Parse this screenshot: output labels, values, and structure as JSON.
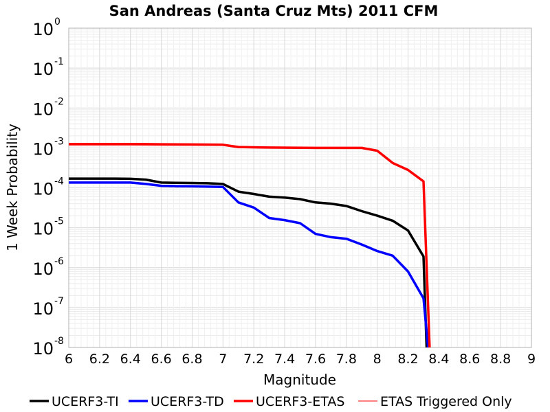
{
  "chart_data": {
    "type": "line",
    "title": "San Andreas (Santa Cruz Mts) 2011 CFM",
    "xlabel": "Magnitude",
    "ylabel": "1 Week Probability",
    "xlim": [
      6,
      9
    ],
    "ylim": [
      1e-08,
      1
    ],
    "yscale": "log",
    "x_ticks": [
      "6",
      "6.2",
      "6.4",
      "6.6",
      "6.8",
      "7",
      "7.2",
      "7.4",
      "7.6",
      "7.8",
      "8",
      "8.2",
      "8.4",
      "8.6",
      "8.8",
      "9"
    ],
    "y_ticks": [
      {
        "base": "10",
        "exp": "0",
        "value": 1
      },
      {
        "base": "10",
        "exp": "-1",
        "value": 0.1
      },
      {
        "base": "10",
        "exp": "-2",
        "value": 0.01
      },
      {
        "base": "10",
        "exp": "-3",
        "value": 0.001
      },
      {
        "base": "10",
        "exp": "-4",
        "value": 0.0001
      },
      {
        "base": "10",
        "exp": "-5",
        "value": 1e-05
      },
      {
        "base": "10",
        "exp": "-6",
        "value": 1e-06
      },
      {
        "base": "10",
        "exp": "-7",
        "value": 1e-07
      },
      {
        "base": "10",
        "exp": "-8",
        "value": 1e-08
      }
    ],
    "grid": true,
    "legend_position": "bottom",
    "series": [
      {
        "name": "UCERF3-TI",
        "color": "#000000",
        "points": [
          [
            6.0,
            0.00017
          ],
          [
            6.1,
            0.00017
          ],
          [
            6.2,
            0.00017
          ],
          [
            6.3,
            0.00017
          ],
          [
            6.4,
            0.000168
          ],
          [
            6.5,
            0.00016
          ],
          [
            6.6,
            0.000135
          ],
          [
            6.7,
            0.000133
          ],
          [
            6.8,
            0.000132
          ],
          [
            6.9,
            0.00013
          ],
          [
            7.0,
            0.000125
          ],
          [
            7.1,
            8e-05
          ],
          [
            7.2,
            7e-05
          ],
          [
            7.3,
            6e-05
          ],
          [
            7.4,
            5.7e-05
          ],
          [
            7.5,
            5.2e-05
          ],
          [
            7.6,
            4.3e-05
          ],
          [
            7.7,
            4e-05
          ],
          [
            7.8,
            3.5e-05
          ],
          [
            7.9,
            2.6e-05
          ],
          [
            8.0,
            2e-05
          ],
          [
            8.1,
            1.5e-05
          ],
          [
            8.2,
            8.5e-06
          ],
          [
            8.3,
            1.9e-06
          ],
          [
            8.32,
            1e-08
          ]
        ]
      },
      {
        "name": "UCERF3-TD",
        "color": "#0000ff",
        "points": [
          [
            6.0,
            0.000135
          ],
          [
            6.1,
            0.000135
          ],
          [
            6.2,
            0.000135
          ],
          [
            6.3,
            0.000135
          ],
          [
            6.4,
            0.000135
          ],
          [
            6.5,
            0.000125
          ],
          [
            6.6,
            0.000112
          ],
          [
            6.7,
            0.00011
          ],
          [
            6.8,
            0.000109
          ],
          [
            6.9,
            0.000107
          ],
          [
            7.0,
            0.000105
          ],
          [
            7.1,
            4.3e-05
          ],
          [
            7.2,
            3.2e-05
          ],
          [
            7.3,
            1.75e-05
          ],
          [
            7.4,
            1.55e-05
          ],
          [
            7.5,
            1.3e-05
          ],
          [
            7.6,
            7e-06
          ],
          [
            7.7,
            5.8e-06
          ],
          [
            7.8,
            5.3e-06
          ],
          [
            7.9,
            3.8e-06
          ],
          [
            8.0,
            2.6e-06
          ],
          [
            8.1,
            2e-06
          ],
          [
            8.2,
            8e-07
          ],
          [
            8.3,
            1.7e-07
          ],
          [
            8.33,
            1e-08
          ]
        ]
      },
      {
        "name": "UCERF3-ETAS",
        "color": "#ff0000",
        "points": [
          [
            6.0,
            0.00125
          ],
          [
            6.4,
            0.00125
          ],
          [
            6.5,
            0.00124
          ],
          [
            6.6,
            0.00123
          ],
          [
            6.8,
            0.00122
          ],
          [
            7.0,
            0.0012
          ],
          [
            7.1,
            0.00105
          ],
          [
            7.3,
            0.00102
          ],
          [
            7.6,
            0.001
          ],
          [
            7.9,
            0.001
          ],
          [
            8.0,
            0.00085
          ],
          [
            8.1,
            0.00042
          ],
          [
            8.2,
            0.00028
          ],
          [
            8.3,
            0.000145
          ],
          [
            8.34,
            1e-08
          ]
        ]
      },
      {
        "name": "ETAS Triggered Only",
        "color": "#ff8080",
        "points": [
          [
            6.0,
            0.00118
          ],
          [
            6.4,
            0.00118
          ],
          [
            6.6,
            0.00117
          ],
          [
            6.8,
            0.00117
          ],
          [
            7.0,
            0.00116
          ],
          [
            7.1,
            0.00102
          ],
          [
            7.3,
            0.001
          ],
          [
            7.6,
            0.00098
          ],
          [
            7.9,
            0.00098
          ],
          [
            8.0,
            0.00083
          ],
          [
            8.1,
            0.00041
          ],
          [
            8.2,
            0.00027
          ],
          [
            8.3,
            0.00014
          ],
          [
            8.34,
            1e-08
          ]
        ]
      }
    ]
  }
}
